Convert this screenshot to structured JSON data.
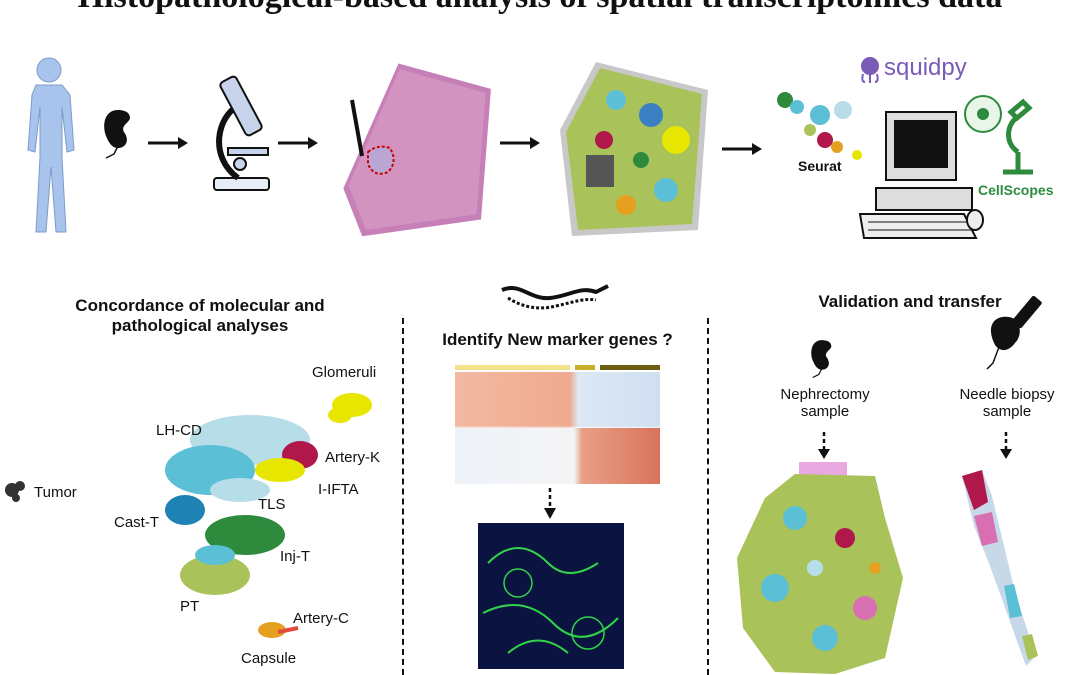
{
  "title": "Histopathological-based analysis of spatial transcriptomics data",
  "tools": {
    "squidpy": "squidpy",
    "seurat": "Seurat",
    "cellscopes": "CellScopes"
  },
  "sections": {
    "concordance": "Concordance of molecular and pathological analyses",
    "markers": "Identify New marker genes ?",
    "validation": "Validation and transfer"
  },
  "clusters": [
    "Glomeruli",
    "LH-CD",
    "Artery-K",
    "I-IFTA",
    "TLS",
    "Tumor",
    "Cast-T",
    "Inj-T",
    "PT",
    "Artery-C",
    "Capsule"
  ],
  "samples": {
    "nephrectomy": "Nephrectomy sample",
    "needle": "Needle biopsy sample"
  },
  "colors": {
    "tissue_green": "#a9c35a",
    "pink_stain": "#d9a0c8",
    "artery_red": "#b0174a",
    "glomeruli_yellow": "#e6e600",
    "cyan": "#5bbfd6",
    "accent_green": "#2e8b3d",
    "squid_purple": "#7a5bb8"
  },
  "icons": [
    "human-body-icon",
    "kidney-icon",
    "microscope-icon",
    "he-tissue-section",
    "spatial-cluster-map",
    "computer-icon",
    "cellscopes-logo-icon",
    "squidpy-logo-icon",
    "mouse-icon",
    "syringe-icon"
  ]
}
